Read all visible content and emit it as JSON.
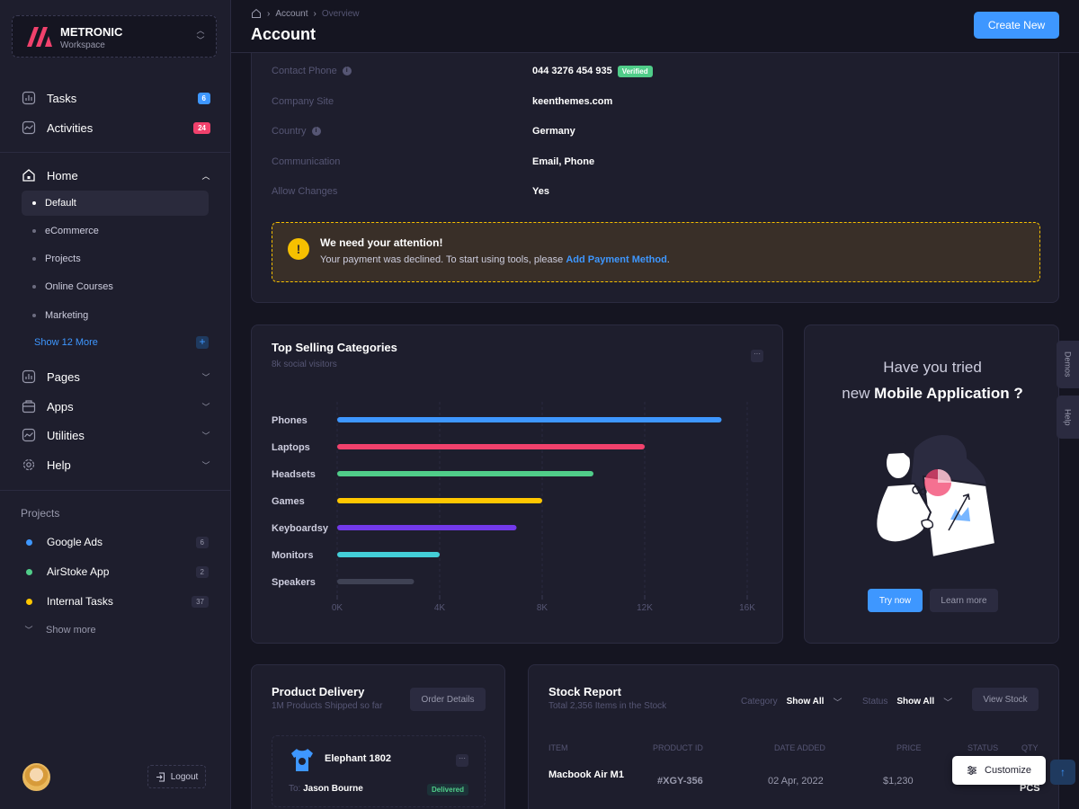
{
  "brand": {
    "name": "METRONIC",
    "subtitle": "Workspace"
  },
  "sidebar": {
    "quick": [
      {
        "label": "Tasks",
        "badge": "6",
        "icon": "bar-chart-icon"
      },
      {
        "label": "Activities",
        "badge": "24",
        "icon": "activity-icon"
      }
    ],
    "home": {
      "label": "Home",
      "items": [
        "Default",
        "eCommerce",
        "Projects",
        "Online Courses",
        "Marketing"
      ],
      "show_more": "Show 12 More"
    },
    "menus": [
      {
        "label": "Pages",
        "icon": "pages-icon"
      },
      {
        "label": "Apps",
        "icon": "apps-icon"
      },
      {
        "label": "Utilities",
        "icon": "utilities-icon"
      },
      {
        "label": "Help",
        "icon": "help-icon"
      }
    ],
    "projects_title": "Projects",
    "projects": [
      {
        "label": "Google Ads",
        "count": "6",
        "color": "#3e97ff"
      },
      {
        "label": "AirStoke App",
        "count": "2",
        "color": "#50cd89"
      },
      {
        "label": "Internal Tasks",
        "count": "37",
        "color": "#ffc700"
      }
    ],
    "projects_show_more": "Show more",
    "logout": "Logout"
  },
  "header": {
    "breadcrumb": [
      "Account",
      "Overview"
    ],
    "title": "Account",
    "create_button": "Create New"
  },
  "account": {
    "rows": [
      {
        "label": "Contact Phone",
        "value": "044 3276 454 935",
        "info": true,
        "badge": "Verified"
      },
      {
        "label": "Company Site",
        "value": "keenthemes.com",
        "info": false
      },
      {
        "label": "Country",
        "value": "Germany",
        "info": true
      },
      {
        "label": "Communication",
        "value": "Email, Phone",
        "info": false
      },
      {
        "label": "Allow Changes",
        "value": "Yes",
        "info": false
      }
    ],
    "alert": {
      "title": "We need your attention!",
      "text": "Your payment was declined. To start using tools, please",
      "link": "Add Payment Method",
      "suffix": "."
    }
  },
  "top_selling": {
    "title": "Top Selling Categories",
    "subtitle": "8k social visitors"
  },
  "chart_data": {
    "type": "bar",
    "orientation": "horizontal",
    "title": "Top Selling Categories",
    "subtitle": "8k social visitors",
    "categories": [
      "Phones",
      "Laptops",
      "Headsets",
      "Games",
      "Keyboardsy",
      "Monitors",
      "Speakers"
    ],
    "values": [
      15000,
      12000,
      10000,
      8000,
      7000,
      4000,
      3000
    ],
    "colors": [
      "#3e97ff",
      "#f1416c",
      "#50cd89",
      "#ffc700",
      "#7239ea",
      "#43ced7",
      "#3f4254"
    ],
    "xticks": [
      "0K",
      "4K",
      "8K",
      "12K",
      "16K"
    ],
    "xlim": [
      0,
      16000
    ],
    "grid": true
  },
  "mobile_app": {
    "line1": "Have you tried",
    "line2_prefix": "new",
    "line2_bold": "Mobile Application ?",
    "try_button": "Try now",
    "learn_button": "Learn more"
  },
  "side_tabs": [
    "Demos",
    "Help"
  ],
  "product_delivery": {
    "title": "Product Delivery",
    "subtitle": "1M Products Shipped so far",
    "button": "Order Details",
    "item": {
      "name": "Elephant 1802",
      "to_label": "To:",
      "to_name": "Jason Bourne",
      "status": "Delivered"
    }
  },
  "stock_report": {
    "title": "Stock Report",
    "subtitle": "Total 2,356 Items in the Stock",
    "category_label": "Category",
    "category_value": "Show All",
    "status_label": "Status",
    "status_value": "Show All",
    "button": "View Stock",
    "columns": [
      "ITEM",
      "PRODUCT ID",
      "DATE ADDED",
      "PRICE",
      "STATUS",
      "QTY"
    ],
    "row": {
      "item": "Macbook Air M1",
      "product_id": "#XGY-356",
      "date": "02 Apr, 2022",
      "price": "$1,230",
      "qty": "PCS"
    }
  },
  "customize": "Customize"
}
